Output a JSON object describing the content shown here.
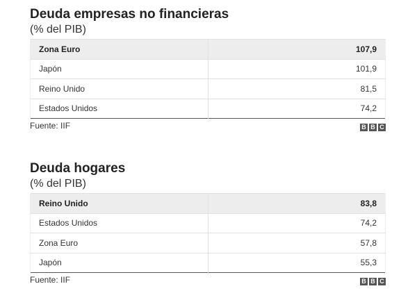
{
  "chart_data": [
    {
      "type": "table",
      "title": "Deuda empresas no financieras",
      "subtitle": "(% del PIB)",
      "rows": [
        {
          "label": "Zona Euro",
          "value": "107,9"
        },
        {
          "label": "Japón",
          "value": "101,9"
        },
        {
          "label": "Reino Unido",
          "value": "81,5"
        },
        {
          "label": "Estados Unidos",
          "value": "74,2"
        }
      ],
      "source": "Fuente: IIF"
    },
    {
      "type": "table",
      "title": "Deuda hogares",
      "subtitle": "(% del PIB)",
      "rows": [
        {
          "label": "Reino Unido",
          "value": "83,8"
        },
        {
          "label": "Estados Unidos",
          "value": "74,2"
        },
        {
          "label": "Zona Euro",
          "value": "57,8"
        },
        {
          "label": "Japón",
          "value": "55,3"
        }
      ],
      "source": "Fuente: IIF"
    }
  ],
  "logo": [
    "B",
    "B",
    "C"
  ]
}
